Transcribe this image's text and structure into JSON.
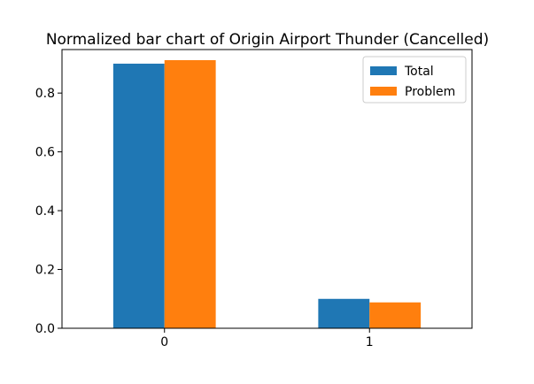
{
  "chart_data": {
    "type": "bar",
    "title": "Normalized bar chart of Origin Airport Thunder (Cancelled)",
    "categories": [
      "0",
      "1"
    ],
    "series": [
      {
        "name": "Total",
        "color": "#1f77b4",
        "values": [
          0.9,
          0.1
        ]
      },
      {
        "name": "Problem",
        "color": "#ff7f0e",
        "values": [
          0.912,
          0.088
        ]
      }
    ],
    "xlabel": "",
    "ylabel": "",
    "ylim": [
      0,
      0.948
    ],
    "yticks": [
      0.0,
      0.2,
      0.4,
      0.6,
      0.8
    ],
    "ytick_labels": [
      "0.0",
      "0.2",
      "0.4",
      "0.6",
      "0.8"
    ],
    "legend_position": "top-right",
    "grid": false
  }
}
